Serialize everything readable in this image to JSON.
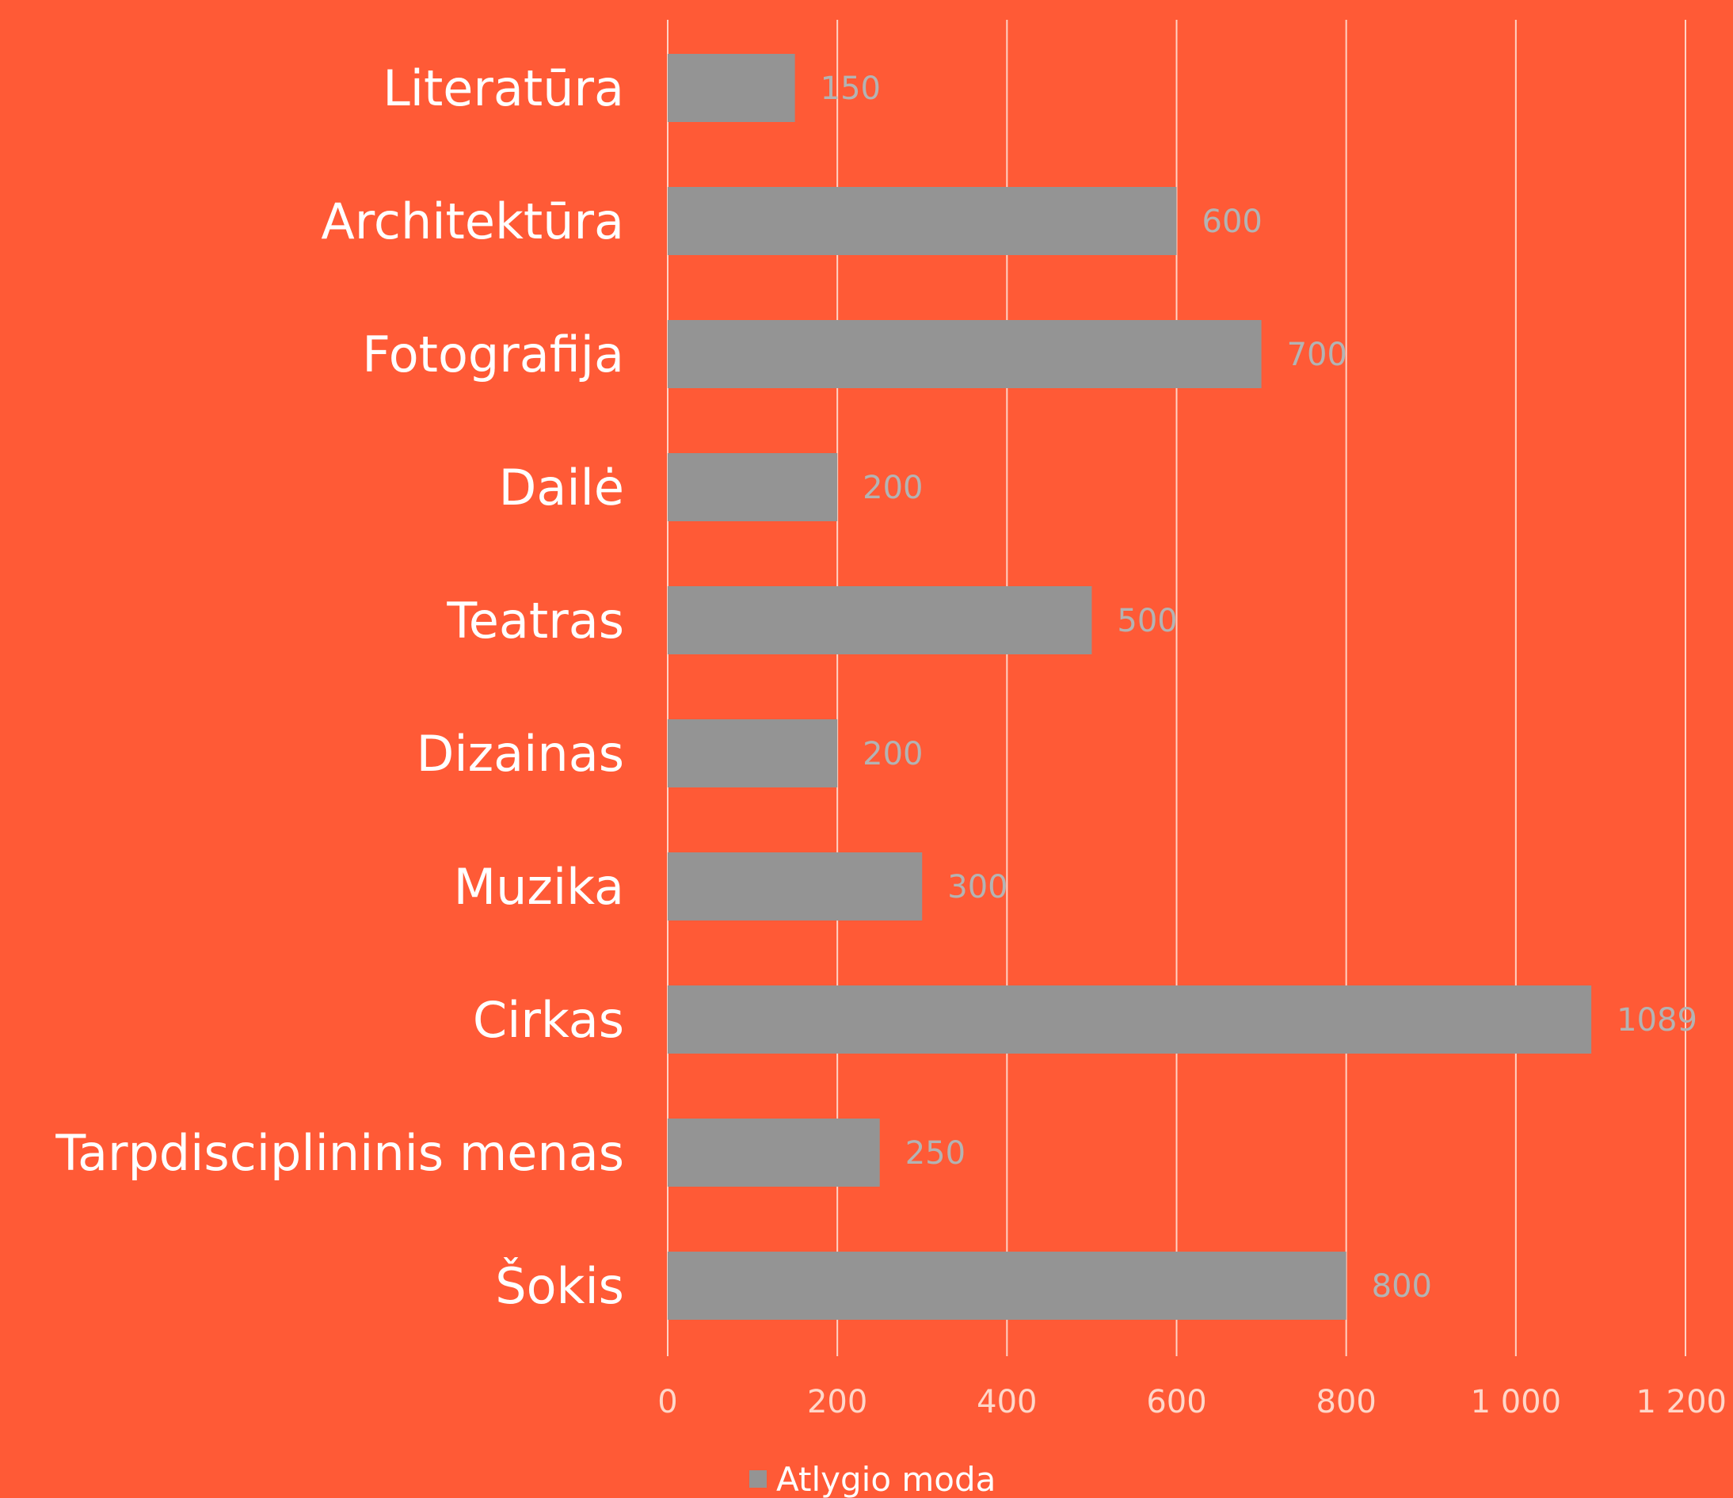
{
  "chart_data": {
    "type": "bar",
    "orientation": "horizontal",
    "categories": [
      "Literatūra",
      "Architektūra",
      "Fotografija",
      "Dailė",
      "Teatras",
      "Dizainas",
      "Muzika",
      "Cirkas",
      "Tarpdisciplininis menas",
      "Šokis"
    ],
    "series": [
      {
        "name": "Atlygio moda",
        "values": [
          150,
          600,
          700,
          200,
          500,
          200,
          300,
          1089,
          250,
          800
        ]
      }
    ],
    "data_labels": [
      "150",
      "600",
      "700",
      "200",
      "500",
      "200",
      "300",
      "1089",
      "250",
      "800"
    ],
    "xlim": [
      0,
      1200
    ],
    "x_ticks": [
      0,
      200,
      400,
      600,
      800,
      1000,
      1200
    ],
    "x_tick_labels": [
      "0",
      "200",
      "400",
      "600",
      "800",
      "1 000",
      "1 200"
    ],
    "grid": "vertical",
    "legend": {
      "position": "bottom",
      "label": "Atlygio moda"
    },
    "colors": {
      "background": "#ff5a36",
      "bar": "#949494",
      "gridline": "#ffd2c4",
      "category_label": "#ffffff",
      "tick_label": "#ffd7c9",
      "data_label": "#b3b3b3"
    }
  }
}
